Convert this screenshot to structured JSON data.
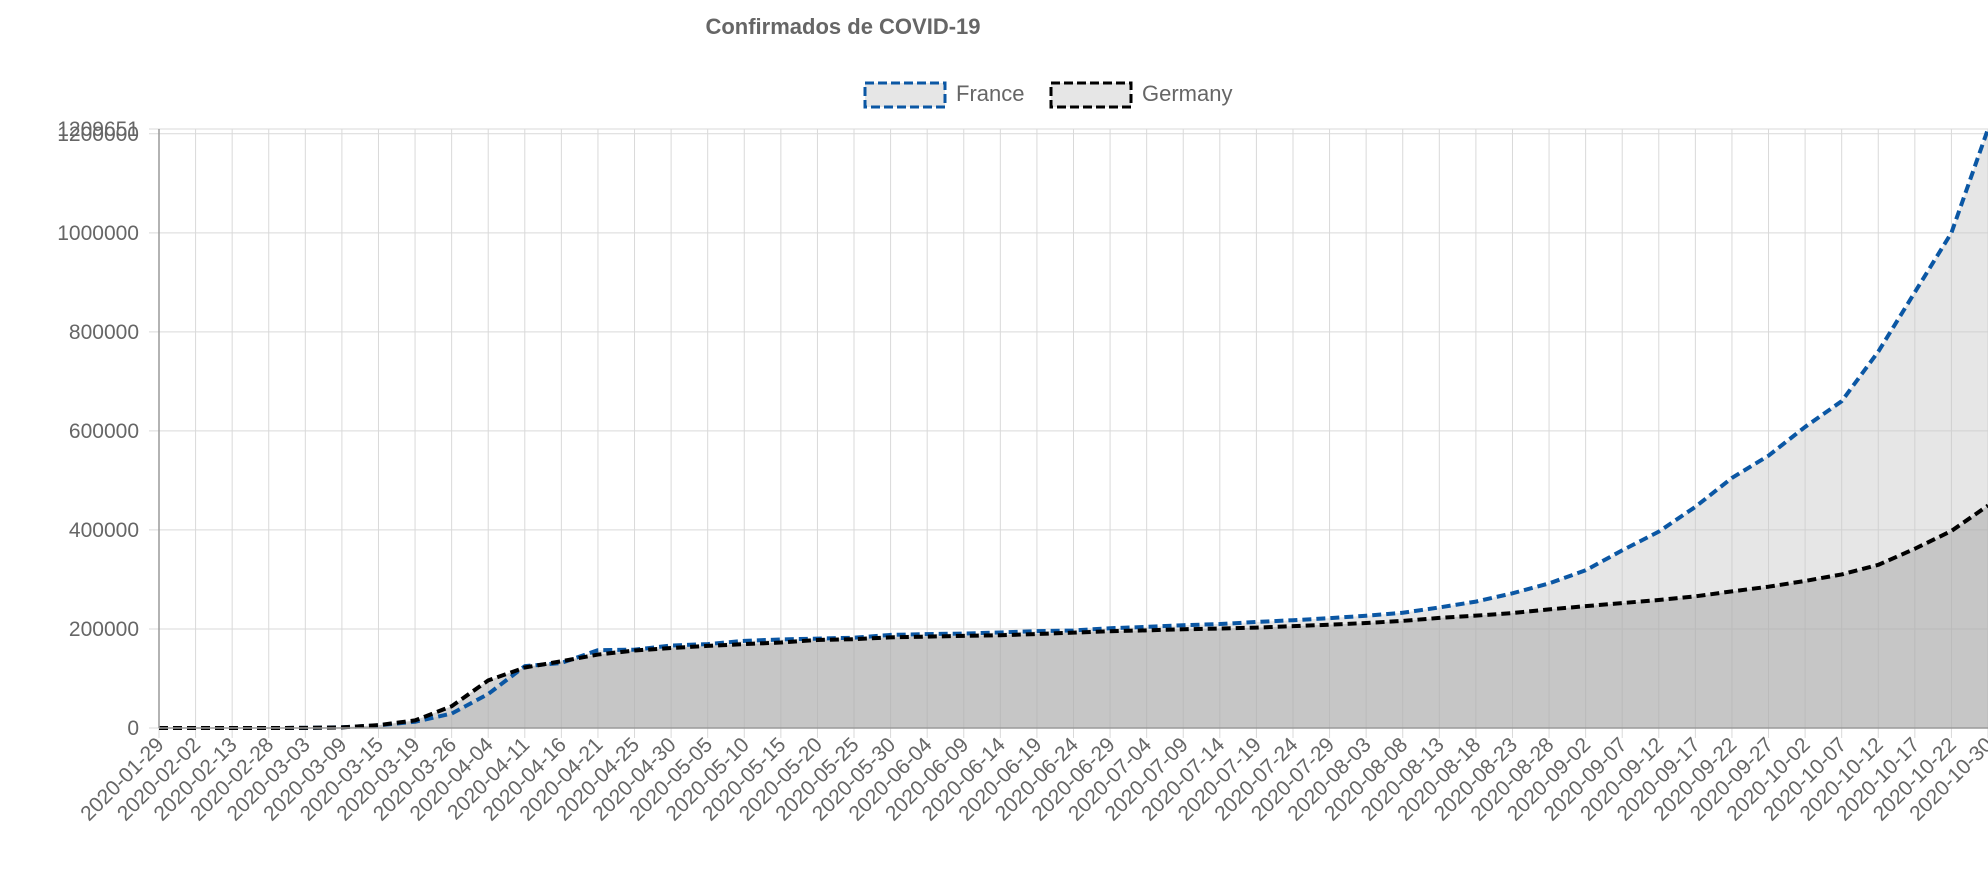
{
  "chart_data": {
    "type": "area",
    "title": "Confirmados de COVID-19",
    "xlabel": "",
    "ylabel": "",
    "ylim": [
      0,
      1209651
    ],
    "y_ticks": [
      0,
      200000,
      400000,
      600000,
      800000,
      1000000,
      1200000,
      1209651
    ],
    "grid": true,
    "legend_position": "top",
    "x": [
      "2020-01-29",
      "2020-02-02",
      "2020-02-13",
      "2020-02-28",
      "2020-03-03",
      "2020-03-09",
      "2020-03-15",
      "2020-03-19",
      "2020-03-26",
      "2020-04-04",
      "2020-04-11",
      "2020-04-16",
      "2020-04-21",
      "2020-04-25",
      "2020-04-30",
      "2020-05-05",
      "2020-05-10",
      "2020-05-15",
      "2020-05-20",
      "2020-05-25",
      "2020-05-30",
      "2020-06-04",
      "2020-06-09",
      "2020-06-14",
      "2020-06-19",
      "2020-06-24",
      "2020-06-29",
      "2020-07-04",
      "2020-07-09",
      "2020-07-14",
      "2020-07-19",
      "2020-07-24",
      "2020-07-29",
      "2020-08-03",
      "2020-08-08",
      "2020-08-13",
      "2020-08-18",
      "2020-08-23",
      "2020-08-28",
      "2020-09-02",
      "2020-09-07",
      "2020-09-12",
      "2020-09-17",
      "2020-09-22",
      "2020-09-27",
      "2020-10-02",
      "2020-10-07",
      "2020-10-12",
      "2020-10-17",
      "2020-10-22",
      "2020-10-30"
    ],
    "series": [
      {
        "name": "France",
        "color": "#0b57a4",
        "fill": "rgba(200,200,200,0.45)",
        "values": [
          4,
          6,
          11,
          57,
          212,
          1412,
          5380,
          12612,
          29155,
          68605,
          124869,
          131366,
          157125,
          158183,
          166543,
          169462,
          175981,
          178804,
          180492,
          182287,
          187974,
          189594,
          190754,
          192916,
          195546,
          196979,
          201453,
          204222,
          207478,
          209947,
          214110,
          217667,
          221780,
          226766,
          232716,
          243432,
          255212,
          272008,
          292025,
          318463,
          358716,
          396536,
          446613,
          505000,
          550000,
          608000,
          660000,
          760000,
          880000,
          1000000,
          1209651
        ]
      },
      {
        "name": "Germany",
        "color": "#000000",
        "fill": "rgba(160,160,160,0.45)",
        "values": [
          4,
          10,
          16,
          57,
          196,
          1176,
          5813,
          15320,
          43938,
          96092,
          122171,
          134753,
          148291,
          156513,
          161539,
          165745,
          169430,
          172576,
          177778,
          179364,
          183019,
          184543,
          186022,
          187267,
          189817,
          192556,
          195418,
          197198,
          199375,
          200843,
          202735,
          205609,
          208698,
          212022,
          216327,
          222281,
          226914,
          232082,
          239507,
          246015,
          252298,
          258480,
          265857,
          275927,
          285332,
          296958,
          310144,
          329453,
          361974,
          397922,
          449275
        ]
      }
    ]
  }
}
